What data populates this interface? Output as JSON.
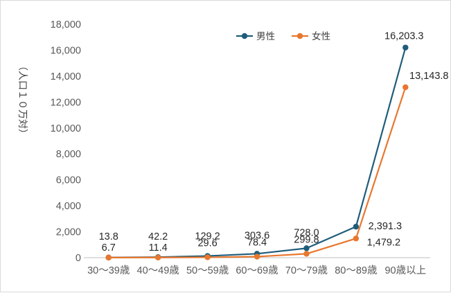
{
  "chart_data": {
    "type": "line",
    "categories": [
      "30～39歳",
      "40～49歳",
      "50～59歳",
      "60～69歳",
      "70～79歳",
      "80～89歳",
      "90歳以上"
    ],
    "series": [
      {
        "name": "男性",
        "color": "#1f5c7a",
        "values": [
          13.8,
          42.2,
          129.2,
          303.6,
          728.0,
          2391.3,
          16203.3
        ],
        "labels": [
          "13.8",
          "42.2",
          "129.2",
          "303.6",
          "728.0",
          "2,391.3",
          "16,203.3"
        ]
      },
      {
        "name": "女性",
        "color": "#e8772e",
        "values": [
          6.7,
          11.4,
          29.6,
          78.4,
          299.8,
          1479.2,
          13143.8
        ],
        "labels": [
          "6.7",
          "11.4",
          "29.6",
          "78.4",
          "299.8",
          "1,479.2",
          "13,143.8"
        ]
      }
    ],
    "ylabel": "（人口１０万対）",
    "ylim": [
      0,
      18000
    ],
    "yticks": [
      0,
      2000,
      4000,
      6000,
      8000,
      10000,
      12000,
      14000,
      16000,
      18000
    ],
    "ytick_labels": [
      "0",
      "2,000",
      "4,000",
      "6,000",
      "8,000",
      "10,000",
      "12,000",
      "14,000",
      "16,000",
      "18,000"
    ],
    "grid": false,
    "legend": "top-right"
  }
}
